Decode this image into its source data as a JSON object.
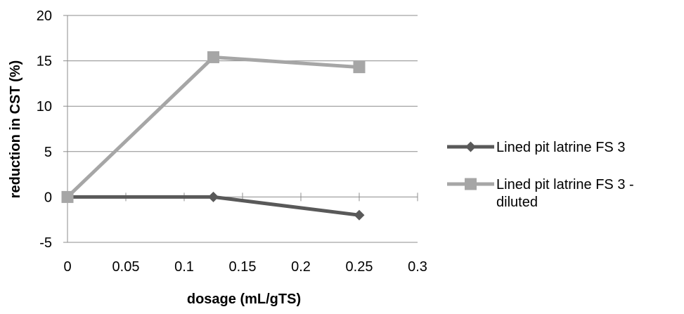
{
  "chart_data": {
    "type": "line",
    "title": "",
    "xlabel": "dosage (mL/gTS)",
    "ylabel": "reduction in CST (%)",
    "xlim": [
      0,
      0.3
    ],
    "ylim": [
      -5,
      20
    ],
    "x_ticks": [
      "0",
      "0.05",
      "0.1",
      "0.15",
      "0.2",
      "0.25",
      "0.3"
    ],
    "y_ticks": [
      "-5",
      "0",
      "5",
      "10",
      "15",
      "20"
    ],
    "grid": "horizontal",
    "legend_position": "right",
    "series": [
      {
        "name": "Lined pit latrine FS 3",
        "name_lines": [
          "Lined pit latrine FS 3"
        ],
        "color": "#595959",
        "marker": "diamond",
        "x": [
          0,
          0.125,
          0.25
        ],
        "y": [
          0,
          0,
          -2
        ]
      },
      {
        "name": "Lined pit latrine FS 3 - diluted",
        "name_lines": [
          "Lined pit latrine FS 3 -",
          "diluted"
        ],
        "color": "#a6a6a6",
        "marker": "square",
        "x": [
          0,
          0.125,
          0.25
        ],
        "y": [
          0,
          15.4,
          14.3
        ]
      }
    ]
  }
}
